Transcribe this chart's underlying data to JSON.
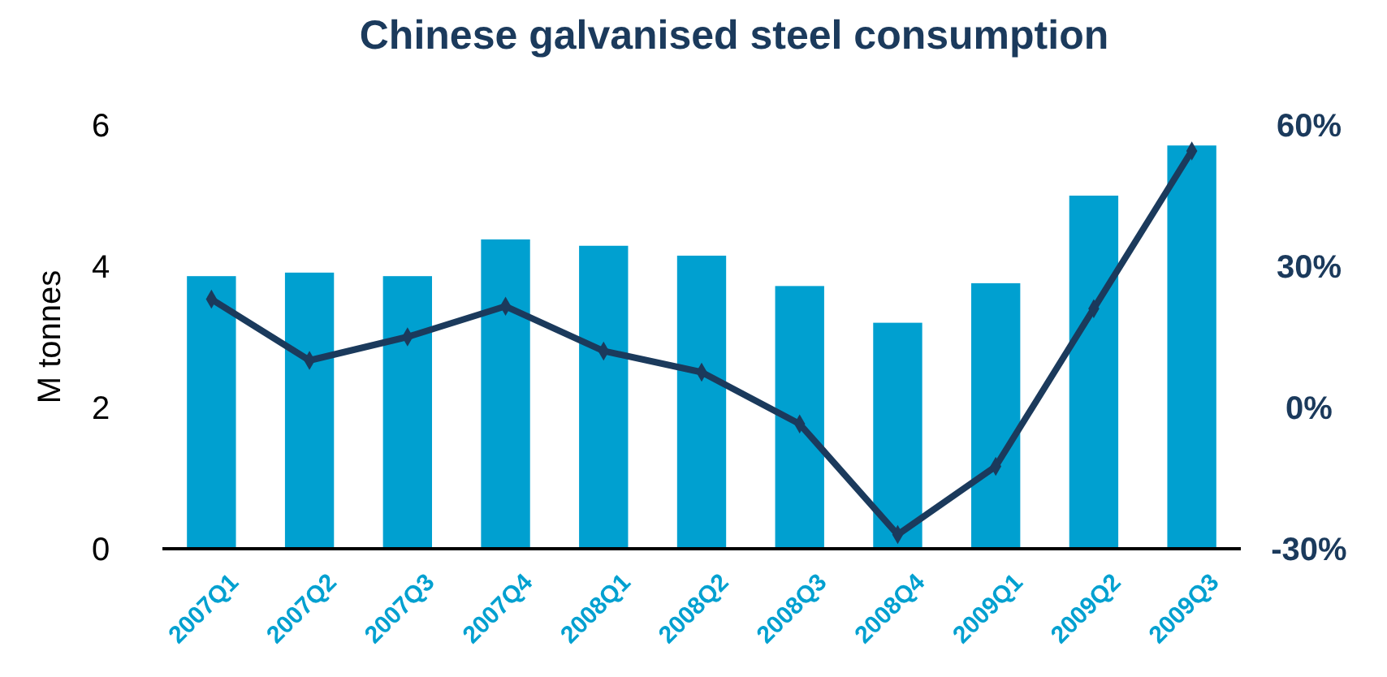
{
  "chart_data": {
    "type": "bar",
    "title": "Chinese galvanised steel consumption",
    "ylabel": "M tonnes",
    "categories": [
      "2007Q1",
      "2007Q2",
      "2007Q3",
      "2007Q4",
      "2008Q1",
      "2008Q2",
      "2008Q3",
      "2008Q4",
      "2009Q1",
      "2009Q2",
      "2009Q3"
    ],
    "series": [
      {
        "color": "#00a0d0",
        "values": [
          3.86,
          3.91,
          3.86,
          4.38,
          4.29,
          4.15,
          3.72,
          3.2,
          3.76,
          5.0,
          5.71
        ]
      },
      {
        "type": "line",
        "axis": "y2",
        "color": "#1b3a5c",
        "marker": "diamond",
        "values": [
          23,
          10,
          15,
          21.5,
          12,
          7.5,
          -3.5,
          -27,
          -12.5,
          21,
          54.5
        ]
      }
    ],
    "ylim": [
      0,
      6
    ],
    "yticks": [
      0,
      2,
      4,
      6
    ],
    "y2lim": [
      -30,
      60
    ],
    "y2ticks": [
      {
        "value": -30,
        "label": "-30%"
      },
      {
        "value": 0,
        "label": "0%"
      },
      {
        "value": 30,
        "label": "30%"
      },
      {
        "value": 60,
        "label": "60%"
      }
    ],
    "grid": false
  }
}
